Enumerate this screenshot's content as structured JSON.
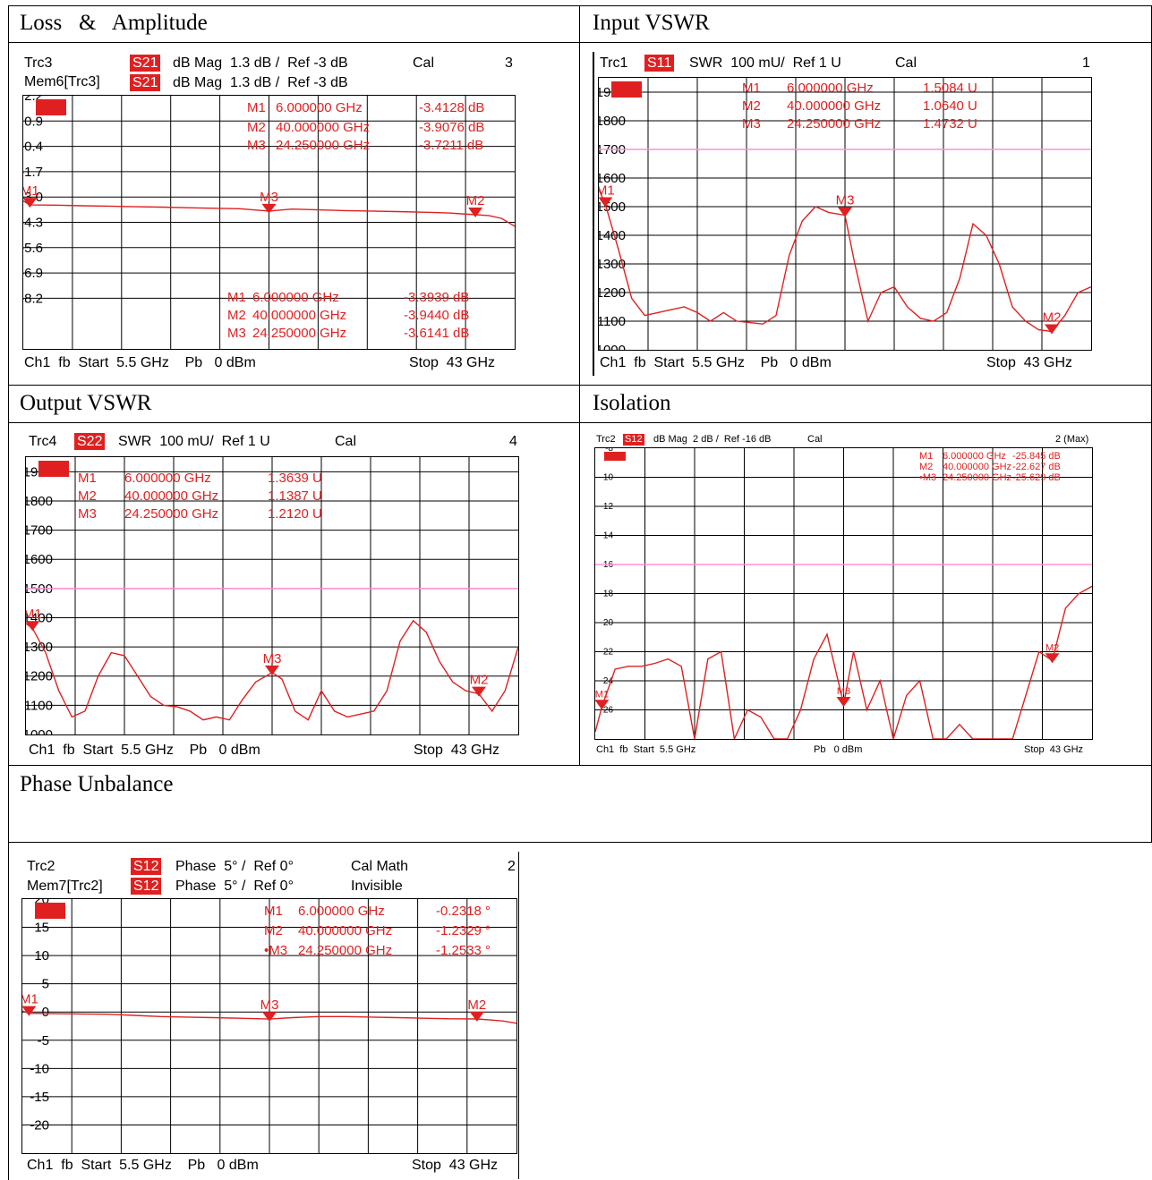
{
  "colors": {
    "trace": "#e02020",
    "grid": "#000000",
    "refline": "#ff8fd6",
    "tag_bg": "#e02020"
  },
  "titles": {
    "loss": "Loss   &   Amplitude",
    "input": "Input VSWR",
    "output": "Output VSWR",
    "isolation": "Isolation",
    "phase": "Phase Unbalance"
  },
  "loss": {
    "hdr1": {
      "trc": "Trc3",
      "param": "S21",
      "fmt": "dB Mag  1.3 dB /  Ref -3 dB",
      "cal": "Cal",
      "num": "3"
    },
    "hdr2": {
      "trc": "Mem6[Trc3]",
      "param": "S21",
      "fmt": "dB Mag  1.3 dB /  Ref -3 dB"
    },
    "tag": "S21",
    "markers_top": [
      [
        "M1",
        "6.000000 GHz",
        "-3.4128 dB"
      ],
      [
        "M2",
        "40.000000 GHz",
        "-3.9076 dB"
      ],
      [
        "M3",
        "24.250000 GHz",
        "-3.7211 dB"
      ]
    ],
    "markers_bot": [
      [
        "M1",
        "6.000000 GHz",
        "-3.3939 dB"
      ],
      [
        "M2",
        "40.000000 GHz",
        "-3.9440 dB"
      ],
      [
        "M3",
        "24.250000 GHz",
        "-3.6141 dB"
      ]
    ],
    "footer": {
      "left": "Ch1  fb  Start  5.5 GHz    Pb   0 dBm",
      "right": "Stop  43 GHz"
    }
  },
  "input": {
    "hdr1": {
      "trc": "Trc1",
      "param": "S11",
      "fmt": "SWR  100 mU/  Ref 1 U",
      "cal": "Cal",
      "num": "1"
    },
    "tag": "S11",
    "markers": [
      [
        "M1",
        "6.000000 GHz",
        "1.5084 U"
      ],
      [
        "M2",
        "40.000000 GHz",
        "1.0640 U"
      ],
      [
        "M3",
        "24.250000 GHz",
        "1.4732 U"
      ]
    ],
    "footer": {
      "left": "Ch1  fb  Start  5.5 GHz    Pb   0 dBm",
      "right": "Stop  43 GHz"
    }
  },
  "output": {
    "hdr1": {
      "trc": "Trc4",
      "param": "S22",
      "fmt": "SWR  100 mU/  Ref 1 U",
      "cal": "Cal",
      "num": "4"
    },
    "tag": "S22",
    "markers": [
      [
        "M1",
        "6.000000 GHz",
        "1.3639 U"
      ],
      [
        "M2",
        "40.000000 GHz",
        "1.1387 U"
      ],
      [
        "M3",
        "24.250000 GHz",
        "1.2120 U"
      ]
    ],
    "footer": {
      "left": "Ch1  fb  Start  5.5 GHz    Pb   0 dBm",
      "right": "Stop  43 GHz"
    }
  },
  "isolation": {
    "hdr1": {
      "trc": "Trc2",
      "param": "S12",
      "fmt": "dB Mag  2 dB /  Ref -16 dB",
      "cal": "Cal",
      "num": "2 (Max)"
    },
    "tag": "S12",
    "markers": [
      [
        "M1",
        "6.000000 GHz",
        "-25.845 dB"
      ],
      [
        "M2",
        "40.000000 GHz",
        "-22.627 dB"
      ],
      [
        "•M3",
        "24.250000 GHz",
        "-25.629 dB"
      ]
    ],
    "footer": {
      "left": "Ch1  fb  Start  5.5 GHz",
      "mid": "Pb   0 dBm",
      "right": "Stop  43 GHz"
    }
  },
  "phase": {
    "hdr1": {
      "trc": "Trc2",
      "param": "S12",
      "fmt": "Phase  5° /  Ref 0°",
      "cal": "Cal Math",
      "num": "2"
    },
    "hdr2": {
      "trc": "Mem7[Trc2]",
      "param": "S12",
      "fmt": "Phase  5° /  Ref 0°",
      "cal": "Invisible"
    },
    "tag": "S12",
    "markers": [
      [
        "M1",
        "6.000000 GHz",
        "-0.2318 °"
      ],
      [
        "M2",
        "40.000000 GHz",
        "-1.2329 °"
      ],
      [
        "•M3",
        "24.250000 GHz",
        "-1.2533 °"
      ]
    ],
    "footer": {
      "left": "Ch1  fb  Start  5.5 GHz    Pb   0 dBm",
      "right": "Stop  43 GHz"
    }
  },
  "chart_data": [
    {
      "type": "line",
      "name": "loss",
      "x_unit": "GHz",
      "xlim": [
        5.5,
        43
      ],
      "yticks": [
        "2.2",
        "0.9",
        "-0.4",
        "-1.7",
        "-3.0",
        "-4.3",
        "-5.6",
        "-6.9",
        "-8.2"
      ],
      "ylim": [
        -10.8,
        2.2
      ],
      "series": [
        {
          "name": "S21",
          "x": [
            5.5,
            6,
            8,
            10,
            12,
            14,
            16,
            18,
            20,
            22,
            24.25,
            26,
            28,
            30,
            32,
            34,
            36,
            38,
            40,
            41,
            42,
            43
          ],
          "y": [
            -3.2,
            -3.41,
            -3.42,
            -3.45,
            -3.47,
            -3.5,
            -3.52,
            -3.55,
            -3.58,
            -3.6,
            -3.72,
            -3.62,
            -3.66,
            -3.7,
            -3.72,
            -3.75,
            -3.78,
            -3.82,
            -3.91,
            -3.95,
            -4.1,
            -4.5
          ]
        }
      ],
      "markers": [
        {
          "name": "M1",
          "x": 6,
          "y": -3.41
        },
        {
          "name": "M2",
          "x": 40,
          "y": -3.91
        },
        {
          "name": "M3",
          "x": 24.25,
          "y": -3.72
        }
      ]
    },
    {
      "type": "line",
      "name": "input_vswr",
      "x_unit": "GHz",
      "xlim": [
        5.5,
        43
      ],
      "yticks": [
        "1900",
        "1800",
        "1700",
        "1600",
        "1500",
        "1400",
        "1300",
        "1200",
        "1100",
        "1000"
      ],
      "ylim": [
        1000,
        1950
      ],
      "refline": 1700,
      "series": [
        {
          "name": "S11",
          "x": [
            5.5,
            6,
            7,
            8,
            9,
            10,
            11,
            12,
            13,
            14,
            15,
            16,
            17,
            18,
            19,
            20,
            21,
            22,
            23,
            24.25,
            25,
            26,
            27,
            28,
            29,
            30,
            31,
            32,
            33,
            34,
            35,
            36,
            37,
            38,
            39,
            40,
            41,
            42,
            43
          ],
          "y": [
            1560,
            1508,
            1350,
            1180,
            1120,
            1130,
            1140,
            1150,
            1130,
            1100,
            1130,
            1100,
            1095,
            1090,
            1120,
            1330,
            1450,
            1500,
            1480,
            1470,
            1300,
            1100,
            1200,
            1220,
            1150,
            1110,
            1100,
            1130,
            1250,
            1440,
            1400,
            1300,
            1150,
            1100,
            1070,
            1064,
            1120,
            1200,
            1220
          ]
        }
      ],
      "markers": [
        {
          "name": "M1",
          "x": 6,
          "y": 1508
        },
        {
          "name": "M2",
          "x": 40,
          "y": 1064
        },
        {
          "name": "M3",
          "x": 24.25,
          "y": 1473
        }
      ]
    },
    {
      "type": "line",
      "name": "output_vswr",
      "x_unit": "GHz",
      "xlim": [
        5.5,
        43
      ],
      "yticks": [
        "1900",
        "1800",
        "1700",
        "1600",
        "1500",
        "1400",
        "1300",
        "1200",
        "1100",
        "1000"
      ],
      "ylim": [
        1000,
        1950
      ],
      "refline": 1500,
      "series": [
        {
          "name": "S22",
          "x": [
            5.5,
            6,
            7,
            8,
            9,
            10,
            11,
            12,
            13,
            14,
            15,
            16,
            17,
            18,
            19,
            20,
            21,
            22,
            23,
            24.25,
            25,
            26,
            27,
            28,
            29,
            30,
            31,
            32,
            33,
            34,
            35,
            36,
            37,
            38,
            39,
            40,
            41,
            42,
            43
          ],
          "y": [
            1380,
            1364,
            1280,
            1150,
            1060,
            1080,
            1200,
            1280,
            1270,
            1200,
            1130,
            1100,
            1095,
            1080,
            1050,
            1060,
            1050,
            1120,
            1180,
            1212,
            1190,
            1080,
            1050,
            1150,
            1080,
            1060,
            1070,
            1080,
            1150,
            1320,
            1390,
            1350,
            1250,
            1180,
            1150,
            1139,
            1080,
            1150,
            1300
          ]
        }
      ],
      "markers": [
        {
          "name": "M1",
          "x": 6,
          "y": 1364
        },
        {
          "name": "M2",
          "x": 40,
          "y": 1139
        },
        {
          "name": "M3",
          "x": 24.25,
          "y": 1212
        }
      ]
    },
    {
      "type": "line",
      "name": "isolation",
      "x_unit": "GHz",
      "xlim": [
        5.5,
        43
      ],
      "yticks": [
        "-8",
        "-10",
        "-12",
        "-14",
        "-16",
        "-18",
        "-20",
        "-22",
        "-24",
        "-26"
      ],
      "ylim": [
        -28,
        -8
      ],
      "refline": -16,
      "series": [
        {
          "name": "S12",
          "x": [
            5.5,
            6,
            6.5,
            7,
            8,
            9,
            10,
            11,
            12,
            13,
            14,
            15,
            16,
            17,
            18,
            19,
            20,
            21,
            22,
            23,
            24.25,
            25,
            26,
            27,
            28,
            29,
            30,
            31,
            32,
            33,
            34,
            35,
            36,
            37,
            38,
            39,
            40,
            41,
            42,
            43
          ],
          "y": [
            -27.5,
            -25.8,
            -24.5,
            -23.2,
            -23,
            -23,
            -22.8,
            -22.5,
            -23,
            -28,
            -22.5,
            -22,
            -28,
            -26,
            -26.5,
            -28,
            -28,
            -26,
            -22.5,
            -20.8,
            -25.6,
            -22,
            -26,
            -24,
            -28,
            -25,
            -24,
            -28,
            -28,
            -27,
            -28,
            -28,
            -28,
            -28,
            -25,
            -22,
            -22.6,
            -19,
            -18,
            -17.5
          ]
        }
      ],
      "markers": [
        {
          "name": "M1",
          "x": 6,
          "y": -25.8
        },
        {
          "name": "M2",
          "x": 40,
          "y": -22.6
        },
        {
          "name": "M3",
          "x": 24.25,
          "y": -25.6
        }
      ]
    },
    {
      "type": "line",
      "name": "phase",
      "x_unit": "GHz",
      "xlim": [
        5.5,
        43
      ],
      "yticks": [
        "20",
        "15",
        "10",
        "5",
        "0",
        "-5",
        "-10",
        "-15",
        "-20"
      ],
      "ylim": [
        -25,
        20
      ],
      "series": [
        {
          "name": "S12",
          "x": [
            5.5,
            6,
            8,
            10,
            12,
            14,
            16,
            18,
            20,
            22,
            24.25,
            26,
            28,
            30,
            32,
            34,
            36,
            38,
            40,
            41,
            42,
            43
          ],
          "y": [
            0.2,
            -0.23,
            -0.3,
            -0.35,
            -0.4,
            -0.6,
            -0.8,
            -0.9,
            -1.0,
            -1.1,
            -1.25,
            -1.0,
            -0.8,
            -0.8,
            -0.9,
            -1.0,
            -1.1,
            -1.2,
            -1.23,
            -1.4,
            -1.6,
            -2.0
          ]
        }
      ],
      "markers": [
        {
          "name": "M1",
          "x": 6,
          "y": -0.23
        },
        {
          "name": "M2",
          "x": 40,
          "y": -1.23
        },
        {
          "name": "M3",
          "x": 24.25,
          "y": -1.25
        }
      ]
    }
  ]
}
